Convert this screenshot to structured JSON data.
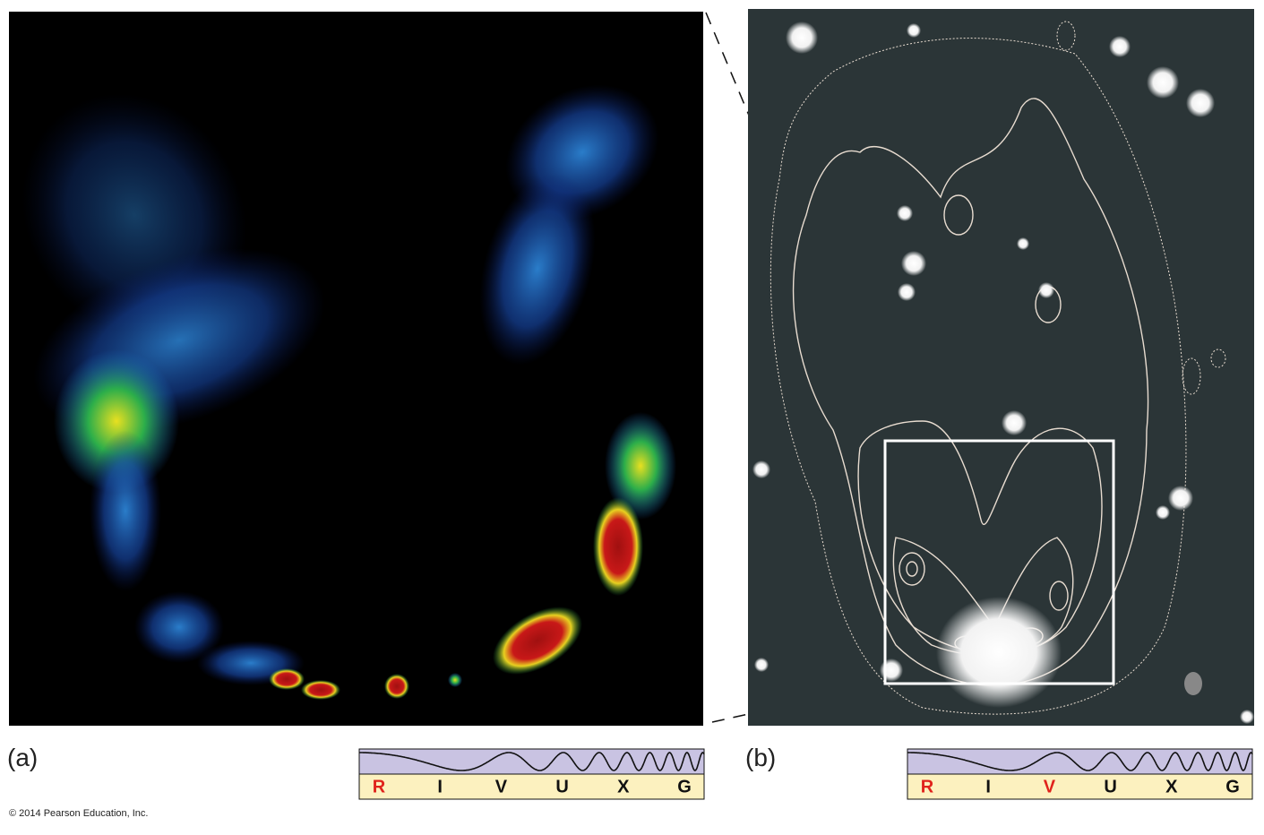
{
  "panels": [
    {
      "label": "(a)",
      "spectrum": {
        "bands": [
          "R",
          "I",
          "V",
          "U",
          "X",
          "G"
        ],
        "active": [
          true,
          false,
          false,
          false,
          false,
          false
        ]
      }
    },
    {
      "label": "(b)",
      "spectrum": {
        "bands": [
          "R",
          "I",
          "V",
          "U",
          "X",
          "G"
        ],
        "active": [
          true,
          false,
          true,
          false,
          false,
          false
        ]
      }
    }
  ],
  "copyright": "© 2014 Pearson Education, Inc."
}
